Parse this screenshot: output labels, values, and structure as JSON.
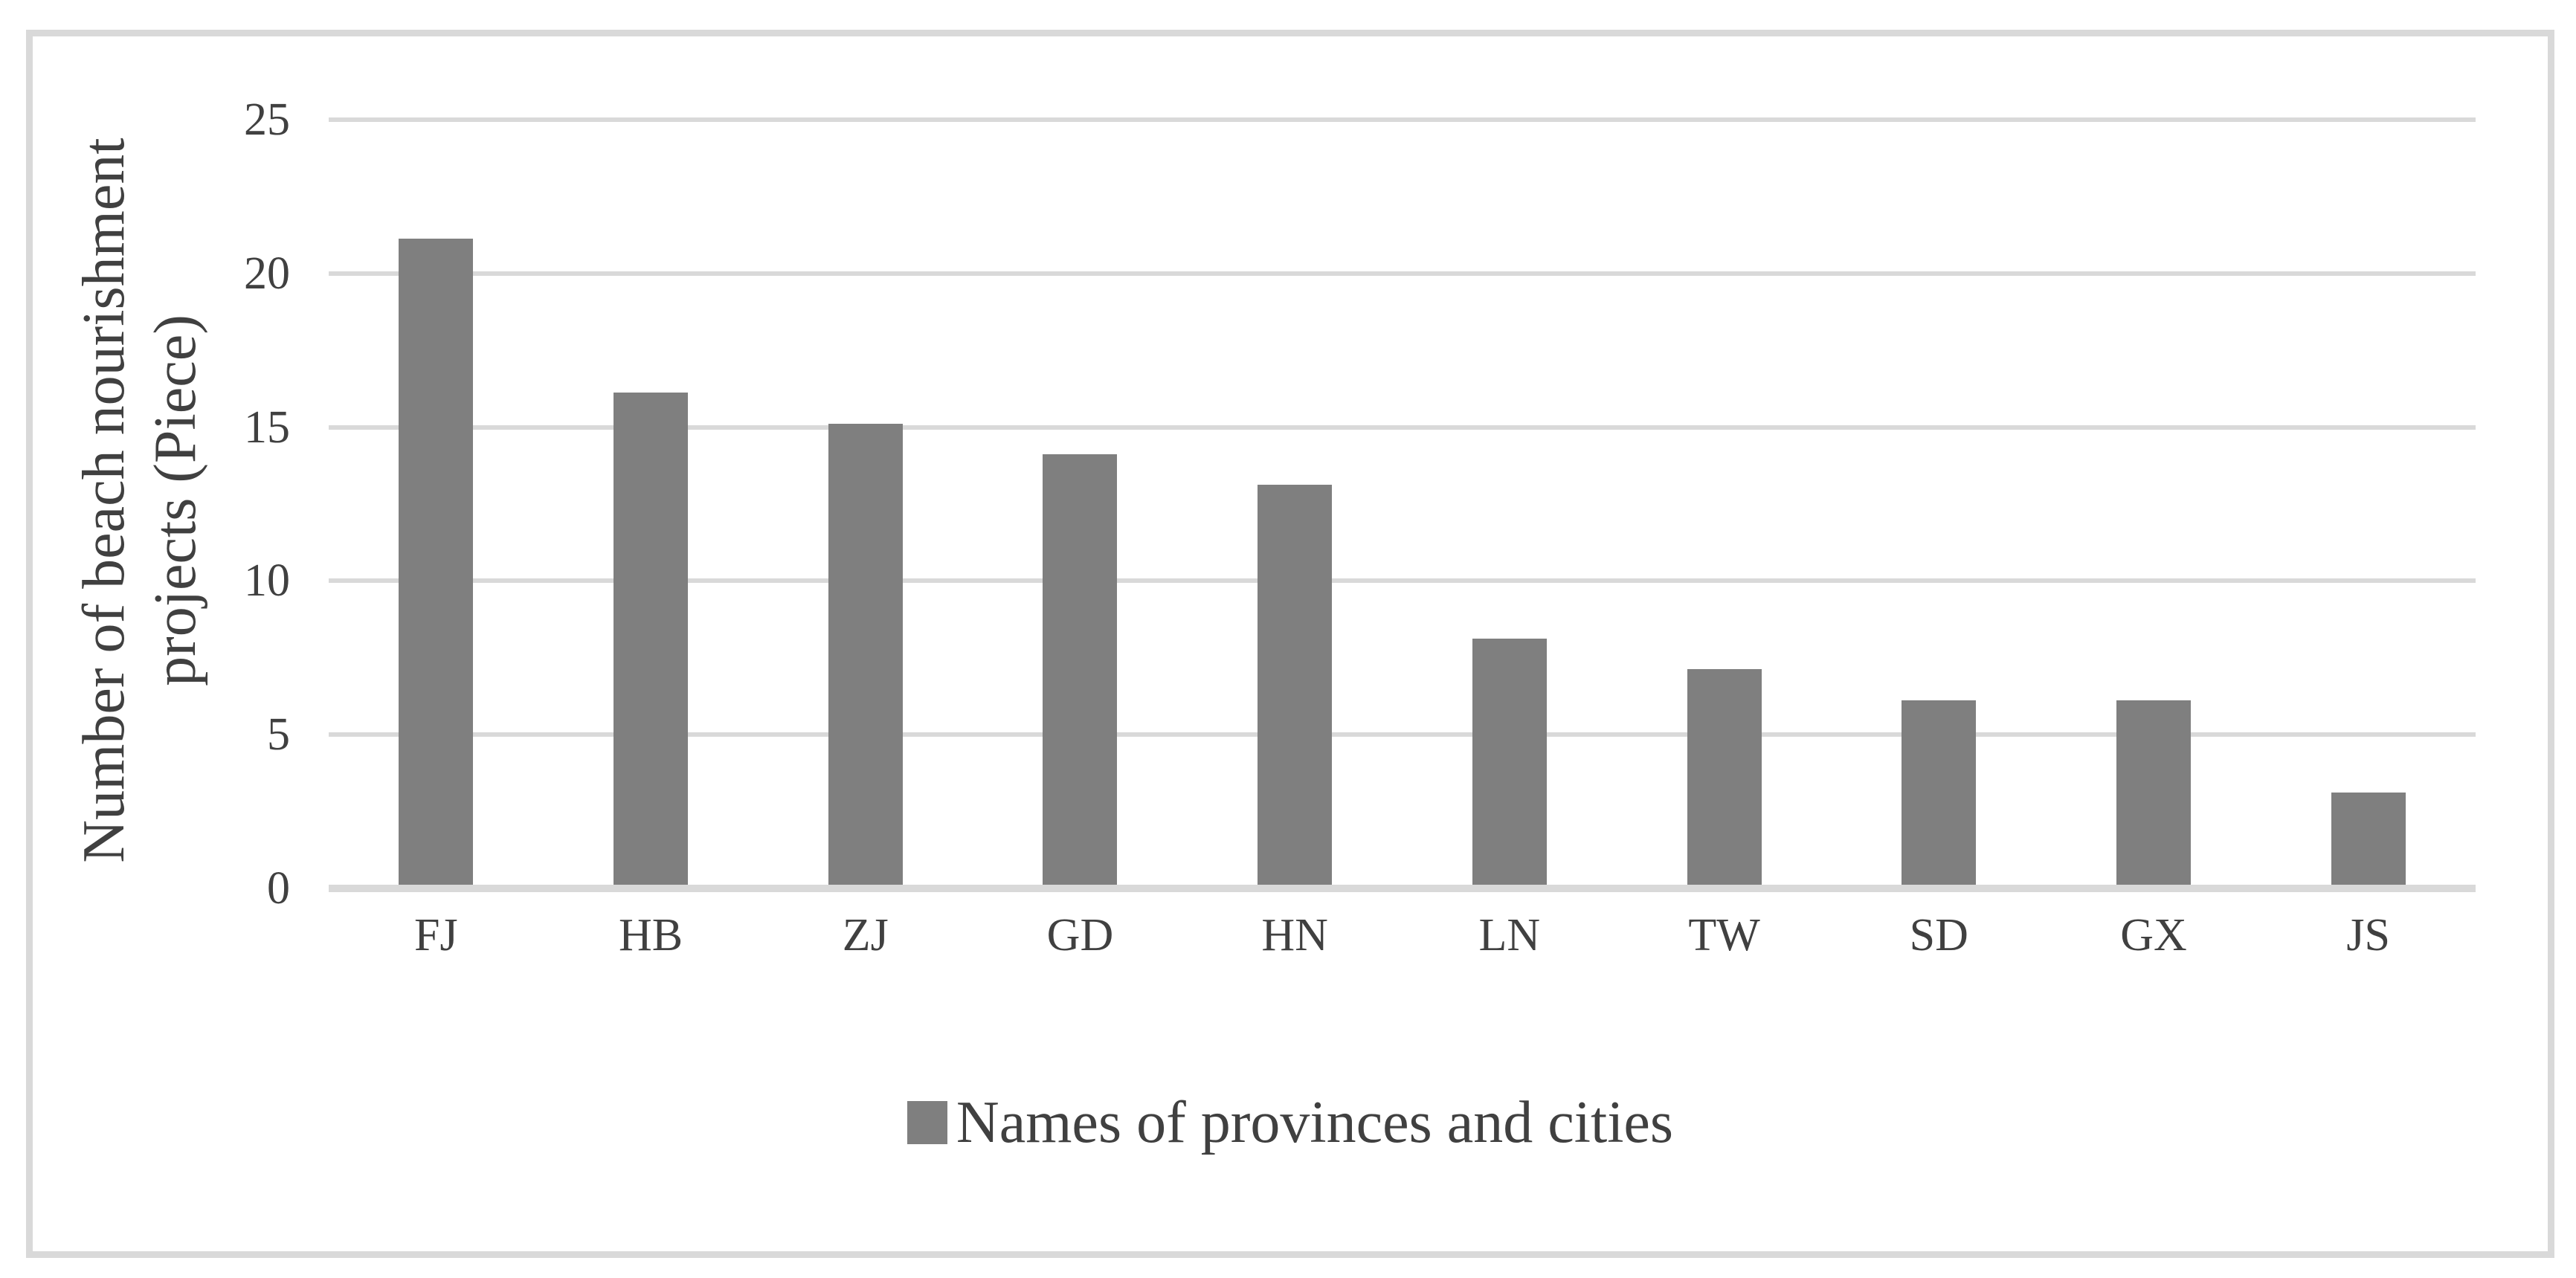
{
  "colors": {
    "bar": "#7f7f7f",
    "gridline": "#d9d9d9",
    "border": "#d9d9d9",
    "text": "#404040",
    "background": "#ffffff"
  },
  "chart_data": {
    "type": "bar",
    "categories": [
      "FJ",
      "HB",
      "ZJ",
      "GD",
      "HN",
      "LN",
      "TW",
      "SD",
      "GX",
      "JS"
    ],
    "values": [
      21,
      16,
      15,
      14,
      13,
      8,
      7,
      6,
      6,
      3
    ],
    "ylabel": "Number of beach nourishment projects (Piece)",
    "ylim": [
      0,
      25
    ],
    "yticks": [
      0,
      5,
      10,
      15,
      20,
      25
    ],
    "grid": true,
    "legend": {
      "label": "Names of provinces and cities",
      "position": "bottom-center",
      "swatch_color": "#7f7f7f"
    }
  }
}
